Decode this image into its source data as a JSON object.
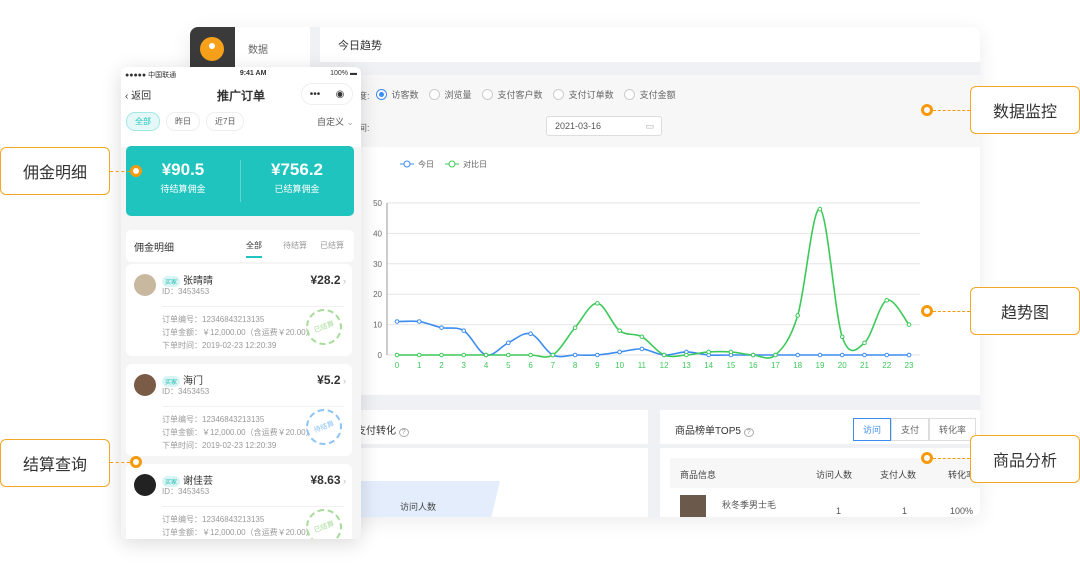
{
  "dashboard": {
    "sidebar": {
      "item": "数据"
    },
    "header_title": "今日趋势",
    "filters": {
      "dimension_label": "据维度:",
      "options": [
        "访客数",
        "浏览量",
        "支付客户数",
        "支付订单数",
        "支付金额"
      ],
      "selected": "访客数",
      "compare_label": "比时间:",
      "compare_date": "2021-03-16"
    },
    "conversion": {
      "title": "支付转化",
      "funnel_label": "访问人数"
    },
    "top5": {
      "title": "商品榜单TOP5",
      "tabs": [
        "访问",
        "支付",
        "转化率"
      ],
      "active_tab": "访问",
      "columns": [
        "商品信息",
        "访问人数",
        "支付人数",
        "转化率"
      ],
      "rows": [
        {
          "name": "秋冬季男士毛",
          "visits": "1",
          "pays": "1",
          "rate": "100%"
        }
      ]
    }
  },
  "chart_data": {
    "type": "line",
    "x": [
      0,
      1,
      2,
      3,
      4,
      5,
      6,
      7,
      8,
      9,
      10,
      11,
      12,
      13,
      14,
      15,
      16,
      17,
      18,
      19,
      20,
      21,
      22,
      23
    ],
    "ylim": [
      0,
      50
    ],
    "yticks": [
      0,
      10,
      20,
      30,
      40,
      50
    ],
    "grid": true,
    "legend_placement": "top-left",
    "series": [
      {
        "name": "今日",
        "color": "#3c8cf0",
        "values": [
          11,
          11,
          9,
          8,
          0,
          4,
          7,
          0,
          0,
          0,
          1,
          2,
          0,
          1,
          0,
          0,
          0,
          0,
          0,
          0,
          0,
          0,
          0,
          0
        ]
      },
      {
        "name": "对比日",
        "color": "#3dc95a",
        "values": [
          0,
          0,
          0,
          0,
          0,
          0,
          0,
          0,
          9,
          17,
          8,
          6,
          0,
          0,
          1,
          1,
          0,
          0,
          13,
          48,
          6,
          4,
          18,
          10
        ]
      }
    ]
  },
  "phone": {
    "status": {
      "carrier": "●●●●● 中国联通",
      "time": "9:41 AM",
      "battery": "100%"
    },
    "nav": {
      "back": "返回",
      "title": "推广订单"
    },
    "date_tabs": [
      "全部",
      "昨日",
      "近7日"
    ],
    "custom": "自定义",
    "summary": [
      {
        "amount": "¥90.5",
        "label": "待结算佣金"
      },
      {
        "amount": "¥756.2",
        "label": "已结算佣金"
      }
    ],
    "list_title": "佣金明细",
    "list_tabs": [
      "全部",
      "待结算",
      "已结算"
    ],
    "orders": [
      {
        "tag": "买家",
        "name": "张晴晴",
        "id": "ID：3453453",
        "amount": "¥28.2",
        "order_no": "订单编号：12346843213135",
        "order_amt": "订单金额：￥12,000.00（含运费￥20.00）",
        "order_time": "下单时间：2019-02-23 12:20:39",
        "stamp": "已结算"
      },
      {
        "tag": "买家",
        "name": "海门",
        "id": "ID：3453453",
        "amount": "¥5.2",
        "order_no": "订单编号：12346843213135",
        "order_amt": "订单金额：￥12,000.00（含运费￥20.00）",
        "order_time": "下单时间：2019-02-23 12:20:39",
        "stamp": "待结算"
      },
      {
        "tag": "买家",
        "name": "谢佳芸",
        "id": "ID：3453453",
        "amount": "¥8.63",
        "order_no": "订单编号：12346843213135",
        "order_amt": "订单金额：￥12,000.00（含运费￥20.00）",
        "order_time": "",
        "stamp": "已结算"
      }
    ]
  },
  "callouts": {
    "commission": "佣金明细",
    "settlement": "结算查询",
    "monitor": "数据监控",
    "trend": "趋势图",
    "product": "商品分析"
  },
  "colors": {
    "accent": "#1ec4bd",
    "orange": "#f59a0c",
    "blue": "#3c8cf0",
    "green": "#3dc95a"
  }
}
